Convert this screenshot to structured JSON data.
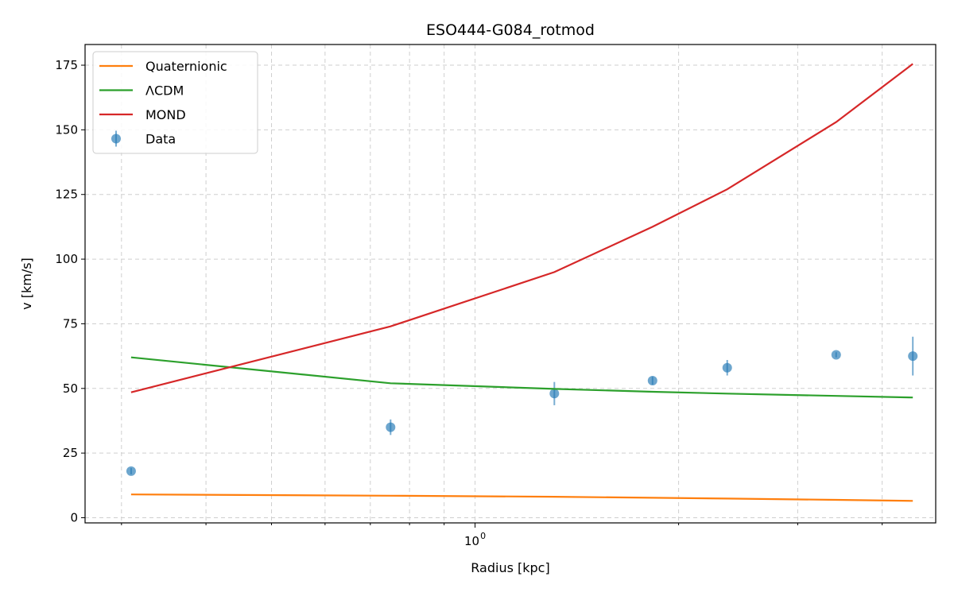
{
  "chart_data": {
    "type": "line",
    "title": "ESO444-G084_rotmod",
    "xlabel": "Radius [kpc]",
    "ylabel": "v [km/s]",
    "xscale": "log",
    "xlim": [
      0.265,
      4.8
    ],
    "ylim": [
      -2,
      183
    ],
    "x_major_ticks": [
      {
        "value": 1,
        "label": "10",
        "sup": "0"
      }
    ],
    "x_minor_ticks": [
      0.3,
      0.4,
      0.5,
      0.6,
      0.7,
      0.8,
      0.9,
      2,
      3,
      4
    ],
    "y_ticks": [
      0,
      25,
      50,
      75,
      100,
      125,
      150,
      175
    ],
    "grid": true,
    "legend_placement": "top-left",
    "series": [
      {
        "name": "Quaternionic",
        "color": "#ff7f0e",
        "kind": "line",
        "x": [
          0.31,
          0.75,
          1.31,
          1.83,
          2.36,
          3.42,
          4.44
        ],
        "y": [
          9.0,
          8.5,
          8.1,
          7.7,
          7.4,
          6.9,
          6.5
        ]
      },
      {
        "name": "ΛCDM",
        "color": "#2ca02c",
        "kind": "line",
        "x": [
          0.31,
          0.75,
          1.31,
          1.83,
          2.36,
          3.42,
          4.44
        ],
        "y": [
          62.0,
          52.0,
          49.8,
          48.7,
          48.0,
          47.1,
          46.5
        ]
      },
      {
        "name": "MOND",
        "color": "#d62728",
        "kind": "line",
        "x": [
          0.31,
          0.75,
          1.31,
          1.83,
          2.36,
          3.42,
          4.44
        ],
        "y": [
          48.5,
          74.0,
          95.0,
          112.5,
          127.0,
          153.0,
          175.5
        ]
      },
      {
        "name": "Data",
        "color": "#1f77b4",
        "kind": "errorbar",
        "x": [
          0.31,
          0.75,
          1.31,
          1.83,
          2.36,
          3.42,
          4.44
        ],
        "y": [
          18.0,
          35.0,
          48.0,
          53.0,
          58.0,
          63.0,
          62.5
        ],
        "err": [
          1.2,
          3.0,
          4.5,
          1.5,
          3.0,
          1.0,
          7.5
        ]
      }
    ]
  }
}
